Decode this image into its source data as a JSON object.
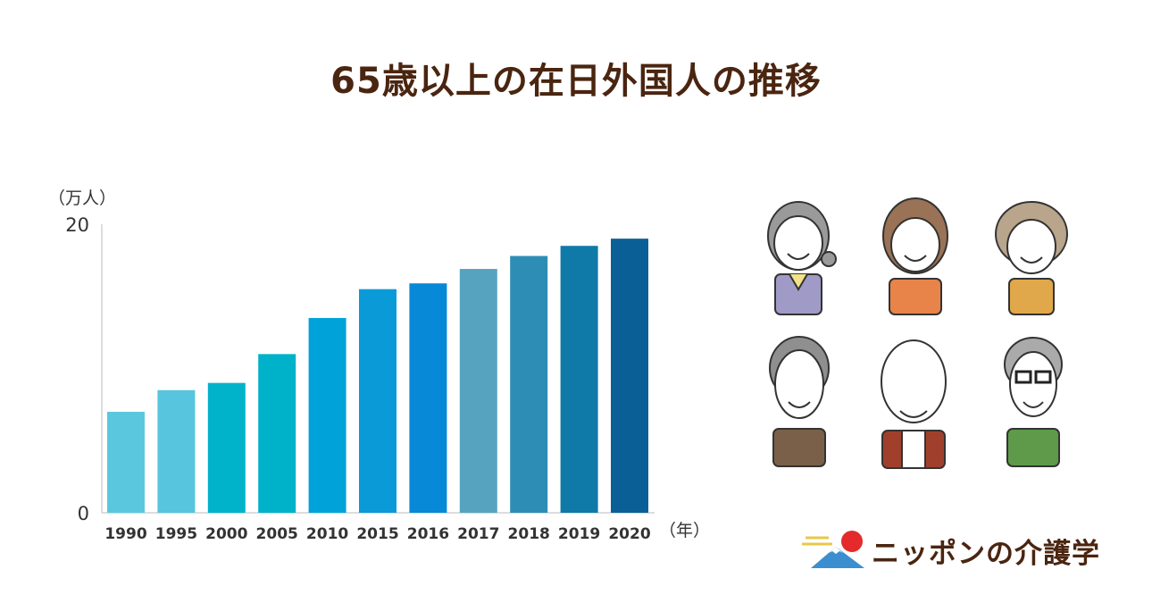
{
  "title": "65歳以上の在日外国人の推移",
  "logo": {
    "text": "ニッポンの介護学"
  },
  "chart_data": {
    "type": "bar",
    "title": "65歳以上の在日外国人の推移",
    "ylabel": "（万人）",
    "xlabel": "（年）",
    "ylim": [
      0,
      20
    ],
    "yticks": [
      0,
      20
    ],
    "categories": [
      "1990",
      "1995",
      "2000",
      "2005",
      "2010",
      "2015",
      "2016",
      "2017",
      "2018",
      "2019",
      "2020"
    ],
    "values": [
      7.0,
      8.5,
      9.0,
      11.0,
      13.5,
      15.5,
      15.9,
      16.9,
      17.8,
      18.5,
      19.0
    ],
    "colors": [
      "#5bc7df",
      "#56c5dd",
      "#00b3cb",
      "#00b2c9",
      "#00a3d9",
      "#0a9ad8",
      "#0789d7",
      "#56a3bf",
      "#2e8db4",
      "#0f7aa8",
      "#0a6096"
    ]
  }
}
